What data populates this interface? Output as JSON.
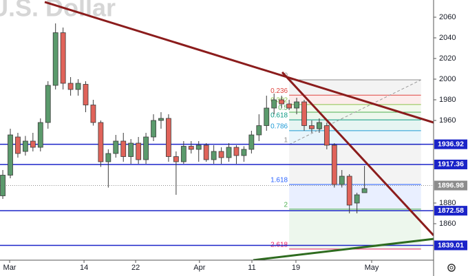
{
  "chart_data": {
    "type": "candlestick",
    "title": "U.S. Dollar",
    "up_color": "#5b9a6c",
    "down_color": "#e0635a",
    "x": [
      0,
      1,
      2,
      3,
      4,
      5,
      6,
      7,
      8,
      9,
      10,
      11,
      12,
      13,
      14,
      15,
      16,
      17,
      18,
      19,
      20,
      21,
      22,
      23,
      24,
      25,
      26,
      27,
      28,
      29,
      30,
      31,
      32,
      33,
      34,
      35,
      36,
      37,
      38,
      39,
      40,
      41,
      42,
      43,
      44,
      45,
      46,
      47,
      48
    ],
    "open": [
      1887,
      1907,
      1944,
      1930,
      1940,
      1934,
      1958,
      1994,
      2045,
      1996,
      1990,
      1995,
      1975,
      1958,
      1920,
      1928,
      1940,
      1925,
      1938,
      1922,
      1944,
      1960,
      1962,
      1925,
      1920,
      1935,
      1932,
      1936,
      1922,
      1930,
      1924,
      1934,
      1926,
      1932,
      1946,
      1955,
      1972,
      1980,
      1976,
      1972,
      1978,
      1955,
      1952,
      1955,
      1936,
      1898,
      1906,
      1880,
      1890
    ],
    "high": [
      1912,
      1952,
      1948,
      1945,
      1948,
      1962,
      1998,
      2054,
      2050,
      2002,
      2000,
      1998,
      1980,
      1960,
      1932,
      1946,
      1948,
      1942,
      1944,
      1948,
      1966,
      1968,
      1966,
      1930,
      1940,
      1940,
      1940,
      1938,
      1936,
      1934,
      1938,
      1936,
      1935,
      1950,
      1966,
      1984,
      1986,
      1984,
      1980,
      1982,
      1980,
      1960,
      1962,
      1958,
      1938,
      1912,
      1908,
      1890,
      1916
    ],
    "low": [
      1884,
      1904,
      1924,
      1926,
      1930,
      1930,
      1952,
      1990,
      1990,
      1984,
      1984,
      1968,
      1955,
      1915,
      1895,
      1924,
      1920,
      1918,
      1918,
      1918,
      1940,
      1952,
      1920,
      1888,
      1918,
      1928,
      1920,
      1920,
      1918,
      1918,
      1920,
      1918,
      1920,
      1928,
      1940,
      1950,
      1966,
      1972,
      1970,
      1966,
      1950,
      1948,
      1948,
      1932,
      1895,
      1895,
      1870,
      1870,
      1890
    ],
    "close": [
      1907,
      1946,
      1928,
      1940,
      1934,
      1958,
      1994,
      2045,
      1996,
      1990,
      1996,
      1975,
      1958,
      1920,
      1928,
      1940,
      1925,
      1938,
      1922,
      1944,
      1960,
      1962,
      1925,
      1920,
      1935,
      1932,
      1936,
      1922,
      1930,
      1924,
      1934,
      1926,
      1932,
      1946,
      1955,
      1972,
      1980,
      1976,
      1972,
      1978,
      1955,
      1952,
      1958,
      1936,
      1898,
      1906,
      1878,
      1888,
      1894
    ],
    "xlim": [
      -0.37,
      57.17
    ],
    "ylim": [
      1824.67,
      2076.67
    ],
    "xticks": [
      {
        "value": 0.91,
        "label": "Mar"
      },
      {
        "value": 10.78,
        "label": "14"
      },
      {
        "value": 17.63,
        "label": "22"
      },
      {
        "value": 26.1,
        "label": "Apr"
      },
      {
        "value": 33.06,
        "label": "11"
      },
      {
        "value": 38.9,
        "label": "19"
      },
      {
        "value": 48.95,
        "label": "May"
      }
    ],
    "yticks": [
      2060,
      2040,
      2020,
      2000,
      1980,
      1960,
      1880,
      1860
    ],
    "levels": [
      {
        "value": 1936.92,
        "color": "#1a23c8"
      },
      {
        "value": 1917.36,
        "color": "#1a23c8"
      },
      {
        "value": 1872.58,
        "color": "#1a23c8"
      },
      {
        "value": 1839.01,
        "color": "#1a23c8"
      }
    ],
    "last_price": {
      "value": 1896.98,
      "color": "#8c8c8c"
    },
    "trendlines": [
      {
        "x": [
          5.57,
          57.17
        ],
        "y": [
          2074.7,
          1958.0
        ],
        "color": "#8b1c1c"
      },
      {
        "x": [
          37.08,
          57.17
        ],
        "y": [
          2006.7,
          1848.7
        ],
        "color": "#8b1c1c"
      },
      {
        "x": [
          33.24,
          57.17
        ],
        "y": [
          1824.7,
          1845.3
        ],
        "color": "#2e6b1f"
      }
    ],
    "fib": {
      "x": [
        38,
        55.5
      ],
      "levels": [
        {
          "level": 0,
          "price": 1999.3,
          "color": "#8c8c8c"
        },
        {
          "level": 0.236,
          "price": 1984.5,
          "color": "#e0443e"
        },
        {
          "level": 0.382,
          "price": 1975.4,
          "color": "#8bc34a"
        },
        {
          "level": 0.5,
          "price": 1968.0,
          "color": "#4caf50"
        },
        {
          "level": 0.618,
          "price": 1960.6,
          "color": "#089981"
        },
        {
          "level": 0.786,
          "price": 1950.1,
          "color": "#1e9bd6"
        },
        {
          "level": 1,
          "price": 1936.7,
          "color": "#8c8c8c"
        },
        {
          "level": 1.618,
          "price": 1898.0,
          "color": "#2962ff"
        },
        {
          "level": 2,
          "price": 1874.1,
          "color": "#4caf50"
        },
        {
          "level": 2.618,
          "price": 1835.4,
          "color": "#e91e63"
        }
      ]
    }
  }
}
